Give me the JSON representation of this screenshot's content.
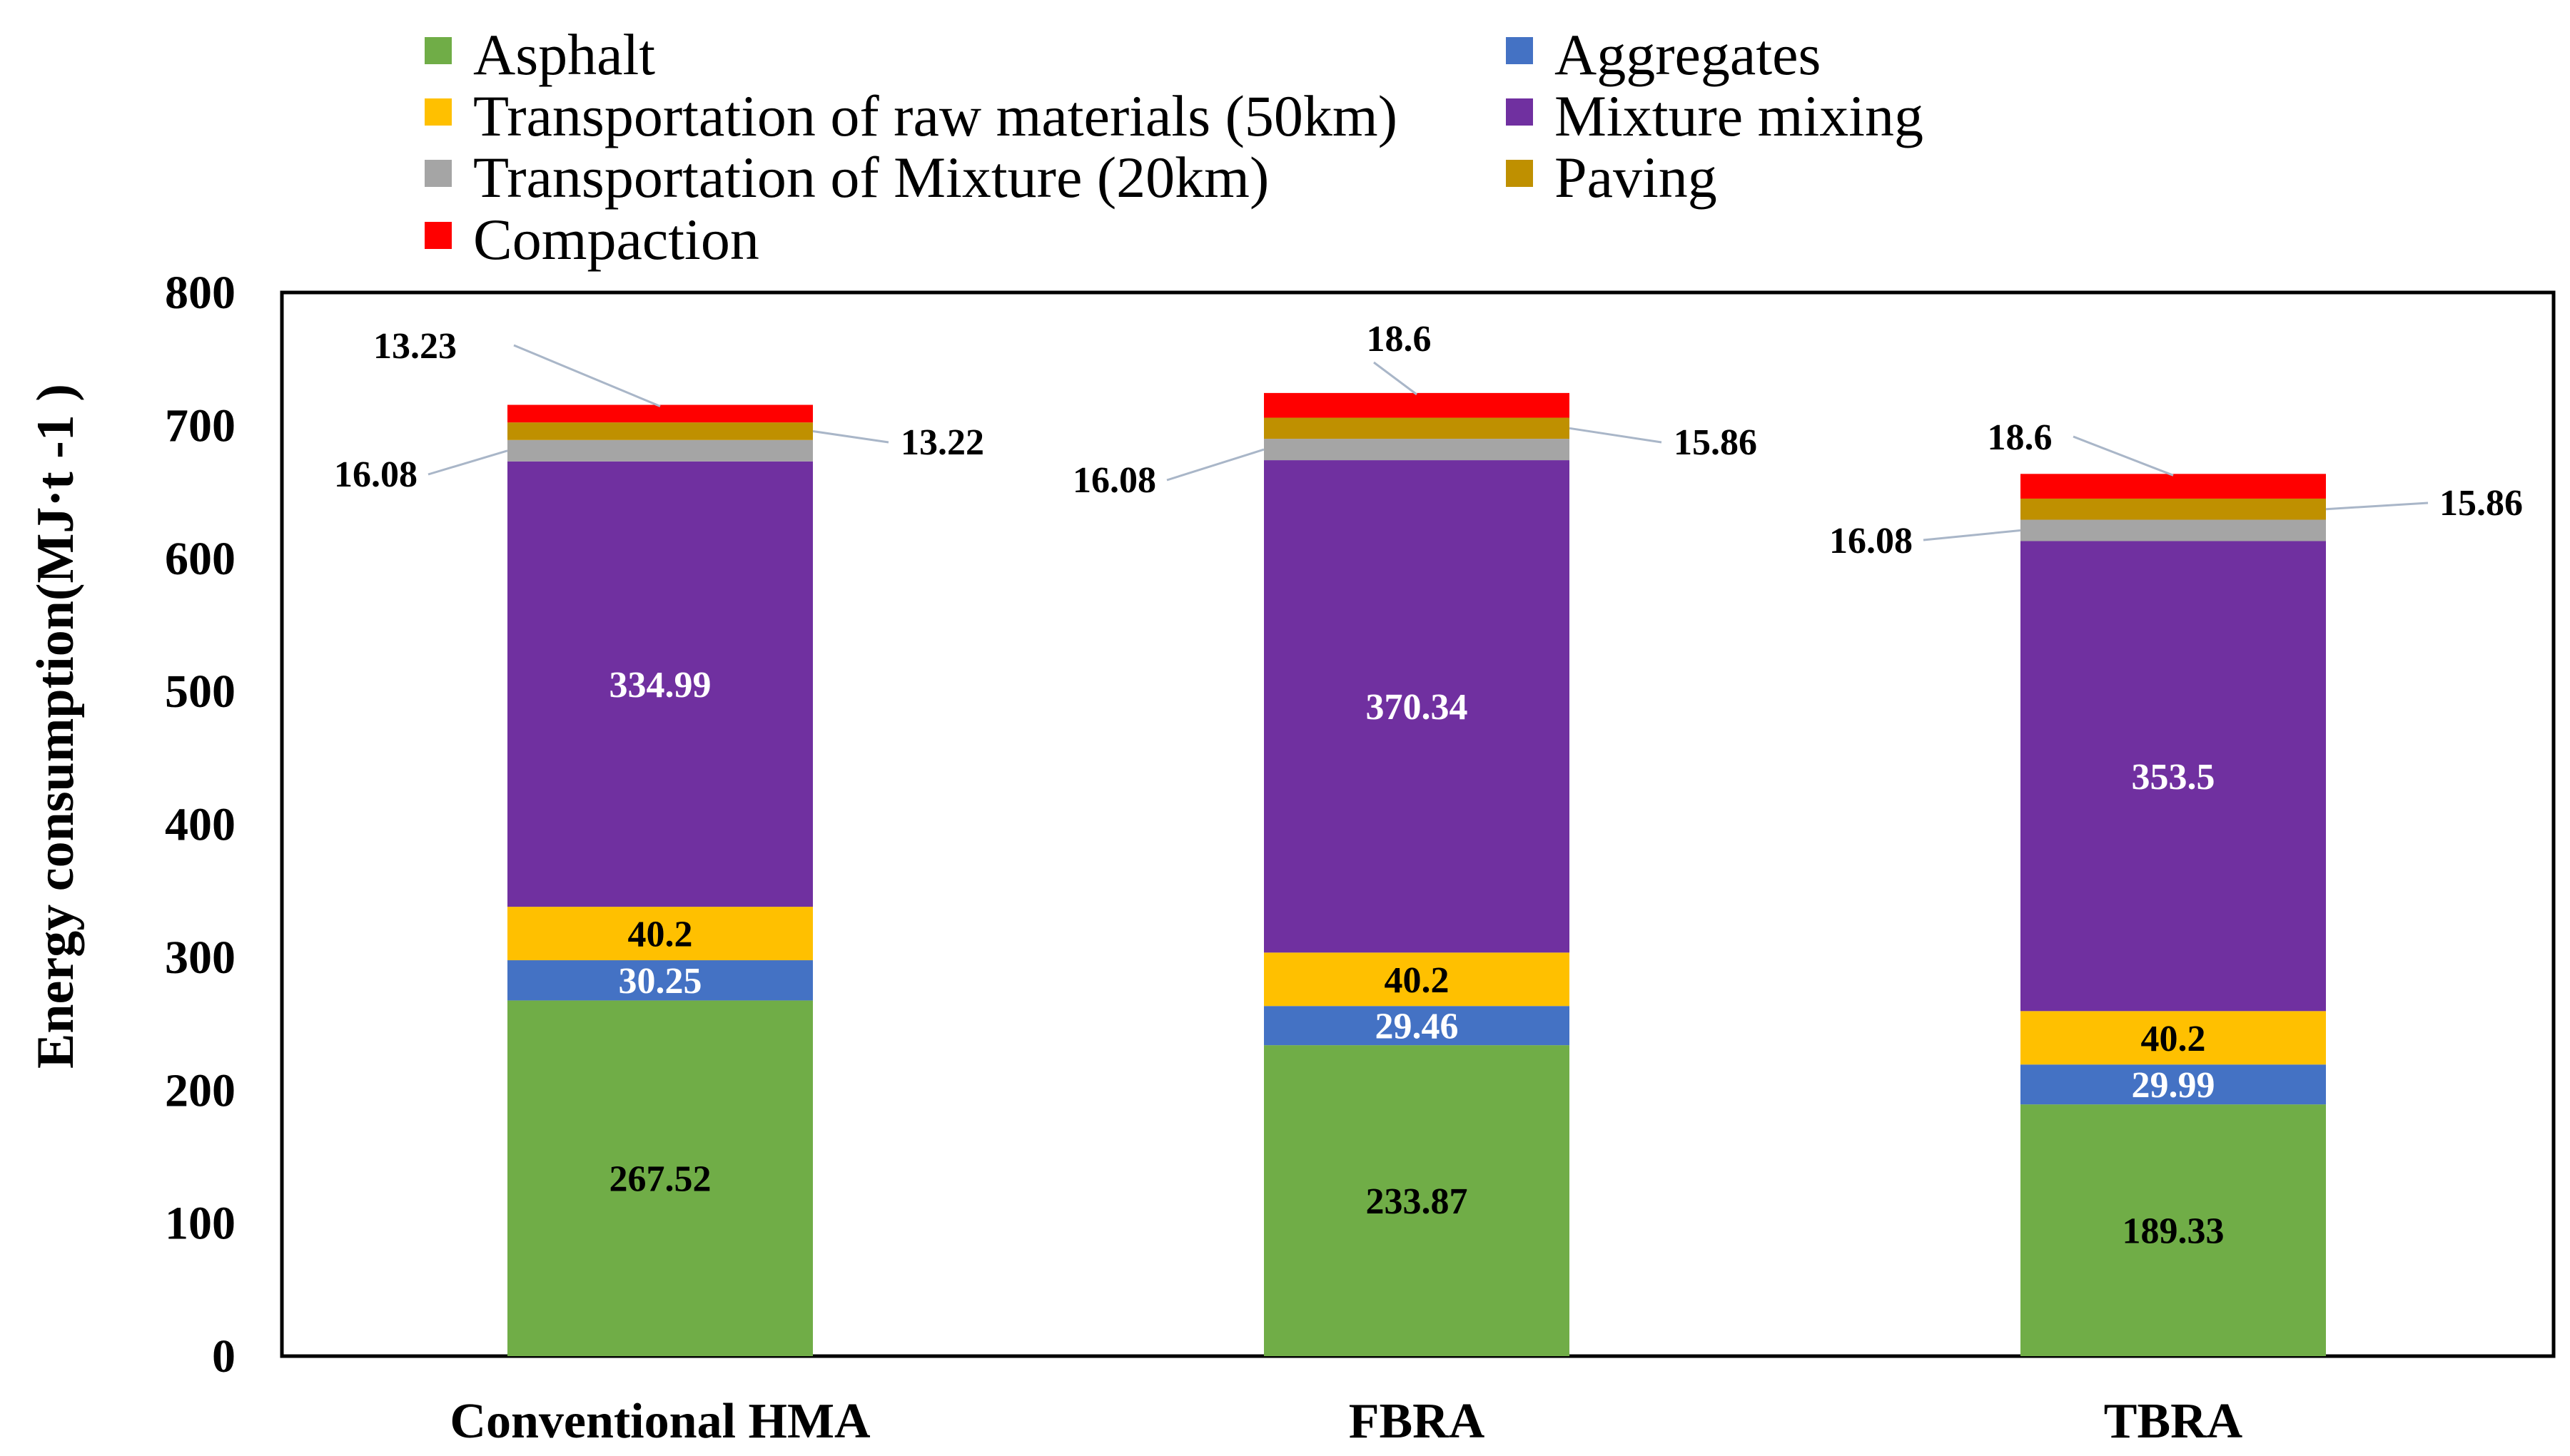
{
  "chart_data": {
    "type": "bar",
    "stacked": true,
    "categories": [
      "Conventional HMA",
      "FBRA",
      "TBRA"
    ],
    "series": [
      {
        "name": "Asphalt",
        "color": "#70AD47",
        "values": [
          267.52,
          233.87,
          189.33
        ],
        "label_color": "#000000"
      },
      {
        "name": "Aggregates",
        "color": "#4472C4",
        "values": [
          30.25,
          29.46,
          29.99
        ],
        "label_color": "#ffffff"
      },
      {
        "name": "Transportation of raw materials (50km)",
        "color": "#FFC000",
        "values": [
          40.2,
          40.2,
          40.2
        ],
        "label_color": "#000000"
      },
      {
        "name": "Mixture mixing",
        "color": "#7030A0",
        "values": [
          334.99,
          370.34,
          353.5
        ],
        "label_color": "#ffffff"
      },
      {
        "name": "Transportation of Mixture (20km)",
        "color": "#A5A5A5",
        "values": [
          16.08,
          16.08,
          16.08
        ],
        "label_color": "#000000"
      },
      {
        "name": "Paving",
        "color": "#BF9000",
        "values": [
          13.22,
          15.86,
          15.86
        ],
        "label_color": "#000000"
      },
      {
        "name": "Compaction",
        "color": "#FF0000",
        "values": [
          13.23,
          18.6,
          18.6
        ],
        "label_color": "#000000"
      }
    ],
    "value_labels": [
      [
        "267.52",
        "233.87",
        "189.33"
      ],
      [
        "30.25",
        "29.46",
        "29.99"
      ],
      [
        "40.2",
        "40.2",
        "40.2"
      ],
      [
        "334.99",
        "370.34",
        "353.5"
      ],
      [
        "16.08",
        "16.08",
        "16.08"
      ],
      [
        "13.22",
        "15.86",
        "15.86"
      ],
      [
        "13.23",
        "18.6",
        "18.6"
      ]
    ],
    "inside_label_series": [
      0,
      1,
      2,
      3
    ],
    "callout_label_series": [
      4,
      5,
      6
    ],
    "ylabel": "Energy consumption(MJ·t -1 )",
    "xlabel": "",
    "ylim": [
      0,
      800
    ],
    "yticks": [
      "0",
      "100",
      "200",
      "300",
      "400",
      "500",
      "600",
      "700",
      "800"
    ],
    "ytick_values": [
      0,
      100,
      200,
      300,
      400,
      500,
      600,
      700,
      800
    ],
    "legend_position": "top-left",
    "grid": false
  }
}
